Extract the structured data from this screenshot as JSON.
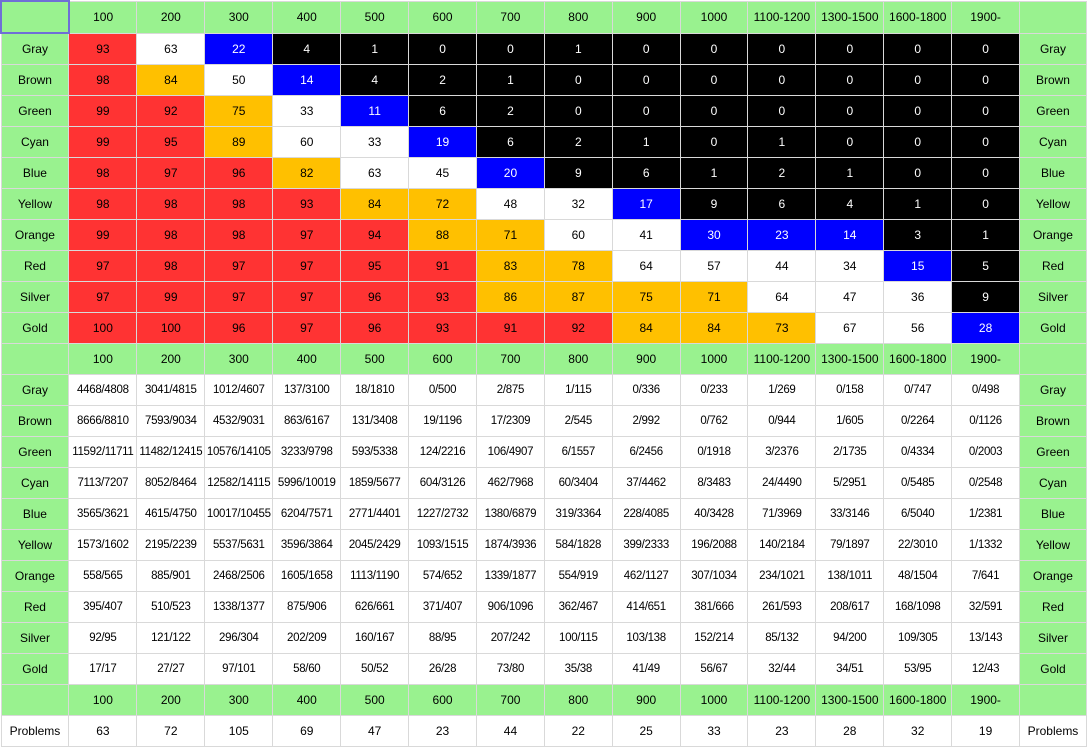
{
  "columns": [
    "100",
    "200",
    "300",
    "400",
    "500",
    "600",
    "700",
    "800",
    "900",
    "1000",
    "1100-1200",
    "1300-1500",
    "1600-1800",
    "1900-"
  ],
  "colors": [
    "Gray",
    "Brown",
    "Green",
    "Cyan",
    "Blue",
    "Yellow",
    "Orange",
    "Red",
    "Silver",
    "Gold"
  ],
  "cell_colors": {
    "red": "#ff3333",
    "orange": "#ffc000",
    "white": "#ffffff",
    "blue": "#0000ff",
    "black": "#000000",
    "header_green": "#99f28f"
  },
  "percent_table": [
    {
      "values": [
        "93",
        "63",
        "22",
        "4",
        "1",
        "0",
        "0",
        "1",
        "0",
        "0",
        "0",
        "0",
        "0",
        "0"
      ],
      "tones": [
        "red",
        "white",
        "blue",
        "black",
        "black",
        "black",
        "black",
        "black",
        "black",
        "black",
        "black",
        "black",
        "black",
        "black"
      ]
    },
    {
      "values": [
        "98",
        "84",
        "50",
        "14",
        "4",
        "2",
        "1",
        "0",
        "0",
        "0",
        "0",
        "0",
        "0",
        "0"
      ],
      "tones": [
        "red",
        "orange",
        "white",
        "blue",
        "black",
        "black",
        "black",
        "black",
        "black",
        "black",
        "black",
        "black",
        "black",
        "black"
      ]
    },
    {
      "values": [
        "99",
        "92",
        "75",
        "33",
        "11",
        "6",
        "2",
        "0",
        "0",
        "0",
        "0",
        "0",
        "0",
        "0"
      ],
      "tones": [
        "red",
        "red",
        "orange",
        "white",
        "blue",
        "black",
        "black",
        "black",
        "black",
        "black",
        "black",
        "black",
        "black",
        "black"
      ]
    },
    {
      "values": [
        "99",
        "95",
        "89",
        "60",
        "33",
        "19",
        "6",
        "2",
        "1",
        "0",
        "1",
        "0",
        "0",
        "0"
      ],
      "tones": [
        "red",
        "red",
        "orange",
        "white",
        "white",
        "blue",
        "black",
        "black",
        "black",
        "black",
        "black",
        "black",
        "black",
        "black"
      ]
    },
    {
      "values": [
        "98",
        "97",
        "96",
        "82",
        "63",
        "45",
        "20",
        "9",
        "6",
        "1",
        "2",
        "1",
        "0",
        "0"
      ],
      "tones": [
        "red",
        "red",
        "red",
        "orange",
        "white",
        "white",
        "blue",
        "black",
        "black",
        "black",
        "black",
        "black",
        "black",
        "black"
      ]
    },
    {
      "values": [
        "98",
        "98",
        "98",
        "93",
        "84",
        "72",
        "48",
        "32",
        "17",
        "9",
        "6",
        "4",
        "1",
        "0"
      ],
      "tones": [
        "red",
        "red",
        "red",
        "red",
        "orange",
        "orange",
        "white",
        "white",
        "blue",
        "black",
        "black",
        "black",
        "black",
        "black"
      ]
    },
    {
      "values": [
        "99",
        "98",
        "98",
        "97",
        "94",
        "88",
        "71",
        "60",
        "41",
        "30",
        "23",
        "14",
        "3",
        "1"
      ],
      "tones": [
        "red",
        "red",
        "red",
        "red",
        "red",
        "orange",
        "orange",
        "white",
        "white",
        "blue",
        "blue",
        "blue",
        "black",
        "black"
      ]
    },
    {
      "values": [
        "97",
        "98",
        "97",
        "97",
        "95",
        "91",
        "83",
        "78",
        "64",
        "57",
        "44",
        "34",
        "15",
        "5"
      ],
      "tones": [
        "red",
        "red",
        "red",
        "red",
        "red",
        "red",
        "orange",
        "orange",
        "white",
        "white",
        "white",
        "white",
        "blue",
        "black"
      ]
    },
    {
      "values": [
        "97",
        "99",
        "97",
        "97",
        "96",
        "93",
        "86",
        "87",
        "75",
        "71",
        "64",
        "47",
        "36",
        "9"
      ],
      "tones": [
        "red",
        "red",
        "red",
        "red",
        "red",
        "red",
        "orange",
        "orange",
        "orange",
        "orange",
        "white",
        "white",
        "white",
        "black"
      ]
    },
    {
      "values": [
        "100",
        "100",
        "96",
        "97",
        "96",
        "93",
        "91",
        "92",
        "84",
        "84",
        "73",
        "67",
        "56",
        "28"
      ],
      "tones": [
        "red",
        "red",
        "red",
        "red",
        "red",
        "red",
        "red",
        "red",
        "orange",
        "orange",
        "orange",
        "white",
        "white",
        "blue"
      ]
    }
  ],
  "count_table": [
    [
      "4468/4808",
      "3041/4815",
      "1012/4607",
      "137/3100",
      "18/1810",
      "0/500",
      "2/875",
      "1/115",
      "0/336",
      "0/233",
      "1/269",
      "0/158",
      "0/747",
      "0/498"
    ],
    [
      "8666/8810",
      "7593/9034",
      "4532/9031",
      "863/6167",
      "131/3408",
      "19/1196",
      "17/2309",
      "2/545",
      "2/992",
      "0/762",
      "0/944",
      "1/605",
      "0/2264",
      "0/1126"
    ],
    [
      "11592/11711",
      "11482/12415",
      "10576/14105",
      "3233/9798",
      "593/5338",
      "124/2216",
      "106/4907",
      "6/1557",
      "6/2456",
      "0/1918",
      "3/2376",
      "2/1735",
      "0/4334",
      "0/2003"
    ],
    [
      "7113/7207",
      "8052/8464",
      "12582/14115",
      "5996/10019",
      "1859/5677",
      "604/3126",
      "462/7968",
      "60/3404",
      "37/4462",
      "8/3483",
      "24/4490",
      "5/2951",
      "0/5485",
      "0/2548"
    ],
    [
      "3565/3621",
      "4615/4750",
      "10017/10455",
      "6204/7571",
      "2771/4401",
      "1227/2732",
      "1380/6879",
      "319/3364",
      "228/4085",
      "40/3428",
      "71/3969",
      "33/3146",
      "6/5040",
      "1/2381"
    ],
    [
      "1573/1602",
      "2195/2239",
      "5537/5631",
      "3596/3864",
      "2045/2429",
      "1093/1515",
      "1874/3936",
      "584/1828",
      "399/2333",
      "196/2088",
      "140/2184",
      "79/1897",
      "22/3010",
      "1/1332"
    ],
    [
      "558/565",
      "885/901",
      "2468/2506",
      "1605/1658",
      "1113/1190",
      "574/652",
      "1339/1877",
      "554/919",
      "462/1127",
      "307/1034",
      "234/1021",
      "138/1011",
      "48/1504",
      "7/641"
    ],
    [
      "395/407",
      "510/523",
      "1338/1377",
      "875/906",
      "626/661",
      "371/407",
      "906/1096",
      "362/467",
      "414/651",
      "381/666",
      "261/593",
      "208/617",
      "168/1098",
      "32/591"
    ],
    [
      "92/95",
      "121/122",
      "296/304",
      "202/209",
      "160/167",
      "88/95",
      "207/242",
      "100/115",
      "103/138",
      "152/214",
      "85/132",
      "94/200",
      "109/305",
      "13/143"
    ],
    [
      "17/17",
      "27/27",
      "97/101",
      "58/60",
      "50/52",
      "26/28",
      "73/80",
      "35/38",
      "41/49",
      "56/67",
      "32/44",
      "34/51",
      "53/95",
      "12/43"
    ]
  ],
  "problems": {
    "label": "Problems",
    "values": [
      "63",
      "72",
      "105",
      "69",
      "47",
      "23",
      "44",
      "22",
      "25",
      "33",
      "23",
      "28",
      "32",
      "19"
    ]
  }
}
